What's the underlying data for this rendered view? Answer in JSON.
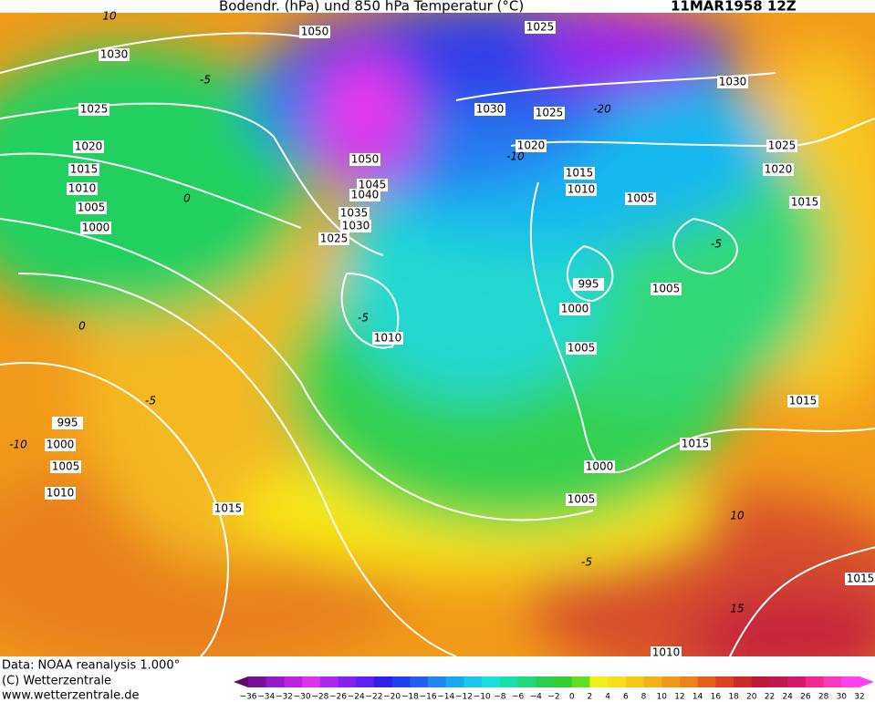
{
  "header": {
    "title": "Bodendr. (hPa) und 850 hPa Temperatur (°C)",
    "date": "11MAR1958 12Z"
  },
  "isobar_labels": [
    1050,
    1025,
    1030,
    1025,
    1020,
    1015,
    1010,
    1005,
    1000,
    1050,
    1045,
    1040,
    1035,
    1030,
    1025,
    1030,
    1025,
    1020,
    1015,
    1010,
    1005,
    1030,
    1025,
    1020,
    1015,
    995,
    1000,
    1005,
    1010,
    1005,
    995,
    1000,
    1005,
    1010,
    1015,
    1000,
    1005,
    1015,
    1015,
    1015,
    1010
  ],
  "temperature_labels": [
    "10",
    "-5",
    "0",
    "0",
    "-10",
    "-5",
    "-5",
    "-5",
    "-20",
    "-10",
    "10",
    "-5",
    "15"
  ],
  "footer": [
    "Data: NOAA reanalysis 1.000°",
    "(C) Wetterzentrale",
    "www.wetterzentrale.de"
  ],
  "colorbar_labels": [
    "−36",
    "−34",
    "−32",
    "−30",
    "−28",
    "−26",
    "−24",
    "−22",
    "−20",
    "−18",
    "−16",
    "−14",
    "−12",
    "−10",
    "−8",
    "−6",
    "−4",
    "−2",
    "0",
    "2",
    "4",
    "6",
    "8",
    "10",
    "12",
    "14",
    "16",
    "18",
    "20",
    "22",
    "24",
    "26",
    "28",
    "30",
    "32"
  ]
}
